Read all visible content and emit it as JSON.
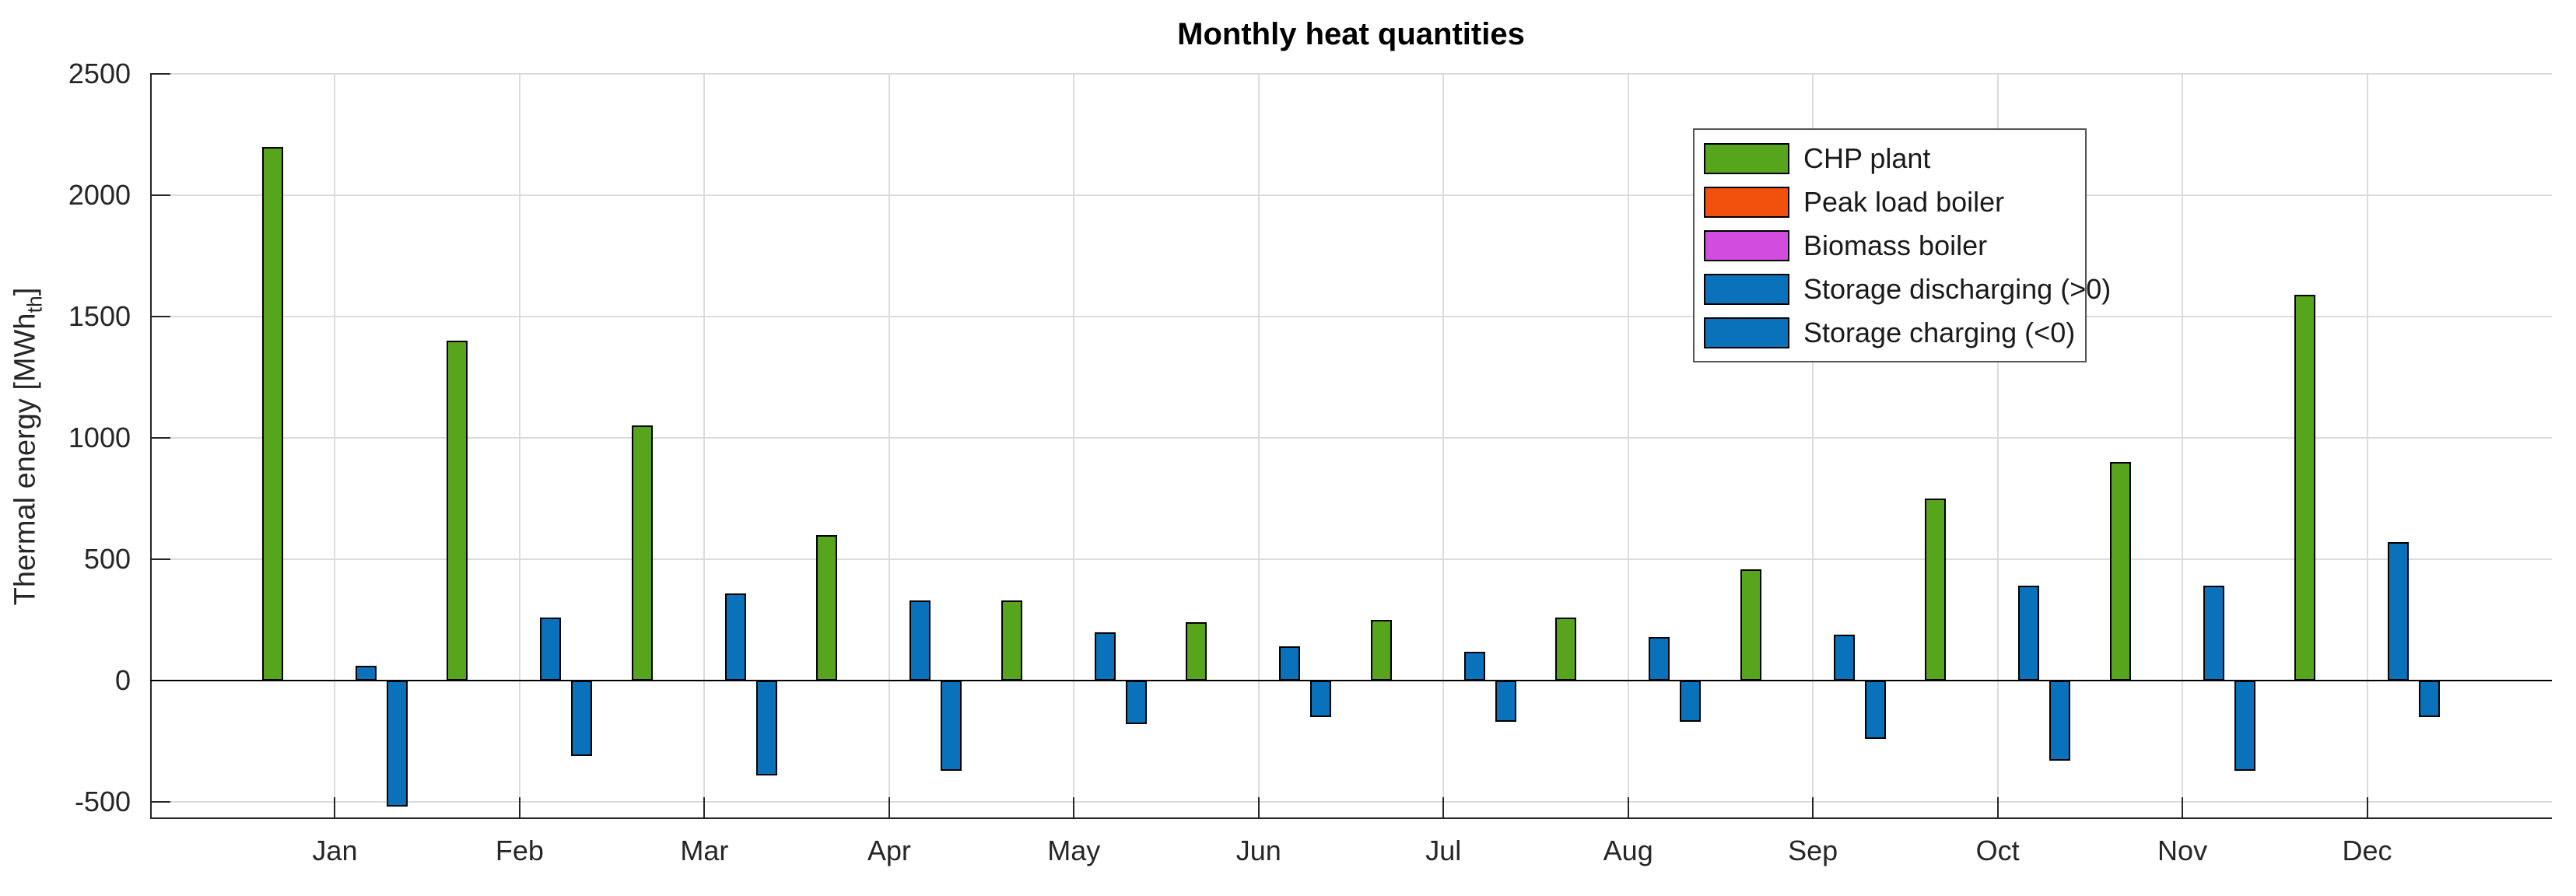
{
  "figure": {
    "title": "Monthly heat quantities",
    "ylabel_pre": "Thermal energy [MWh",
    "ylabel_sub": "th",
    "ylabel_post": "]"
  },
  "chart_data": {
    "type": "bar",
    "title": "Monthly heat quantities",
    "xlabel": "",
    "ylabel": "Thermal energy [MWh_th]",
    "categories": [
      "Jan",
      "Feb",
      "Mar",
      "Apr",
      "May",
      "Jun",
      "Jul",
      "Aug",
      "Sep",
      "Oct",
      "Nov",
      "Dec"
    ],
    "series": [
      {
        "name": "CHP plant",
        "color": "#57a41d",
        "values": [
          2200,
          1400,
          1050,
          600,
          330,
          240,
          250,
          260,
          460,
          750,
          900,
          1590
        ]
      },
      {
        "name": "Peak load boiler",
        "color": "#f2500d",
        "values": [
          0,
          0,
          0,
          0,
          0,
          0,
          0,
          0,
          0,
          0,
          0,
          0
        ]
      },
      {
        "name": "Biomass boiler",
        "color": "#d24ce0",
        "values": [
          0,
          0,
          0,
          0,
          0,
          0,
          0,
          0,
          0,
          0,
          0,
          0
        ]
      },
      {
        "name": "Storage discharging (>0)",
        "color": "#0a72ba",
        "values": [
          60,
          260,
          360,
          330,
          200,
          140,
          120,
          180,
          190,
          390,
          390,
          570
        ]
      },
      {
        "name": "Storage charging (<0)",
        "color": "#0a72ba",
        "values": [
          -520,
          -310,
          -390,
          -370,
          -180,
          -150,
          -170,
          -170,
          -240,
          -330,
          -370,
          -150
        ]
      }
    ],
    "yticks": [
      -500,
      0,
      500,
      1000,
      1500,
      2000,
      2500
    ],
    "ylim": [
      -570,
      2500
    ],
    "grid": true,
    "legend_position": "upper-right-inside",
    "bar_edge_color": "#000000",
    "axis_color": "#262626",
    "grid_color": "#dcdcdc"
  }
}
